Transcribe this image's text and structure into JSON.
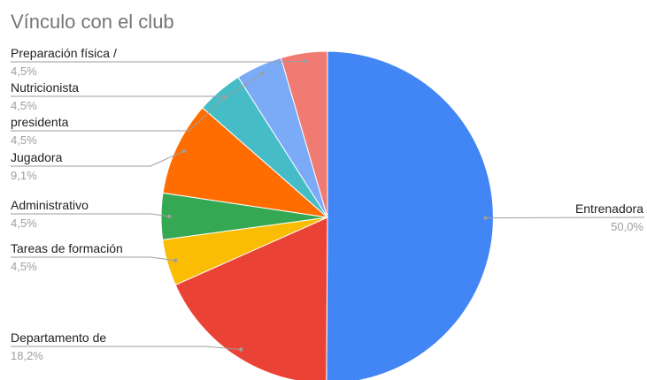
{
  "chart_data": {
    "type": "pie",
    "title": "Vínculo con el club",
    "start_angle_deg": 0,
    "direction": "clockwise",
    "slices": [
      {
        "name": "Entrenadora",
        "value": 50.0,
        "pct_label": "50,0%",
        "color": "#4285f4"
      },
      {
        "name": "Departamento de",
        "value": 18.2,
        "pct_label": "18,2%",
        "color": "#ea4335"
      },
      {
        "name": "Tareas de formación",
        "value": 4.5,
        "pct_label": "4,5%",
        "color": "#fbbc04"
      },
      {
        "name": "Administrativo",
        "value": 4.5,
        "pct_label": "4,5%",
        "color": "#34a853"
      },
      {
        "name": "Jugadora",
        "value": 9.1,
        "pct_label": "9,1%",
        "color": "#ff6d01"
      },
      {
        "name": "presidenta",
        "value": 4.5,
        "pct_label": "4,5%",
        "color": "#46bdc6"
      },
      {
        "name": "Nutricionista",
        "value": 4.5,
        "pct_label": "4,5%",
        "color": "#7baaf7"
      },
      {
        "name": "Preparación física /",
        "value": 4.5,
        "pct_label": "4,5%",
        "color": "#f07b72"
      }
    ]
  }
}
